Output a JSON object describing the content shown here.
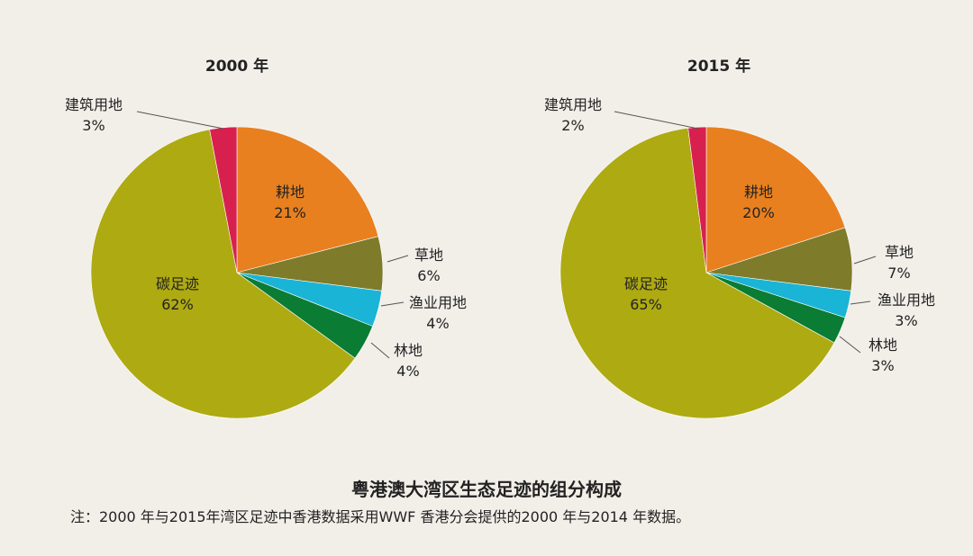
{
  "chart_data": [
    {
      "type": "pie",
      "title": "2000 年",
      "start": "12 o'clock, clockwise",
      "slices": [
        {
          "name": "耕地",
          "value": 21,
          "pct_label": "21%",
          "color": "#e8801f",
          "label_side": "inside"
        },
        {
          "name": "草地",
          "value": 6,
          "pct_label": "6%",
          "color": "#7e7b2a",
          "label_side": "outside"
        },
        {
          "name": "渔业用地",
          "value": 4,
          "pct_label": "4%",
          "color": "#1ab4d6",
          "label_side": "outside"
        },
        {
          "name": "林地",
          "value": 4,
          "pct_label": "4%",
          "color": "#0a7c34",
          "label_side": "outside"
        },
        {
          "name": "碳足迹",
          "value": 62,
          "pct_label": "62%",
          "color": "#aeaa12",
          "label_side": "inside"
        },
        {
          "name": "建筑用地",
          "value": 3,
          "pct_label": "3%",
          "color": "#d8204f",
          "label_side": "outside"
        }
      ]
    },
    {
      "type": "pie",
      "title": "2015 年",
      "start": "12 o'clock, clockwise",
      "slices": [
        {
          "name": "耕地",
          "value": 20,
          "pct_label": "20%",
          "color": "#e8801f",
          "label_side": "inside"
        },
        {
          "name": "草地",
          "value": 7,
          "pct_label": "7%",
          "color": "#7e7b2a",
          "label_side": "outside"
        },
        {
          "name": "渔业用地",
          "value": 3,
          "pct_label": "3%",
          "color": "#1ab4d6",
          "label_side": "outside"
        },
        {
          "name": "林地",
          "value": 3,
          "pct_label": "3%",
          "color": "#0a7c34",
          "label_side": "outside"
        },
        {
          "name": "碳足迹",
          "value": 65,
          "pct_label": "65%",
          "color": "#aeaa12",
          "label_side": "inside"
        },
        {
          "name": "建筑用地",
          "value": 2,
          "pct_label": "2%",
          "color": "#d8204f",
          "label_side": "outside"
        }
      ]
    }
  ],
  "figure": {
    "title": "粤港澳大湾区生态足迹的组分构成",
    "note": "注：2000 年与2015年湾区足迹中香港数据采用WWF 香港分会提供的2000 年与2014 年数据。"
  }
}
